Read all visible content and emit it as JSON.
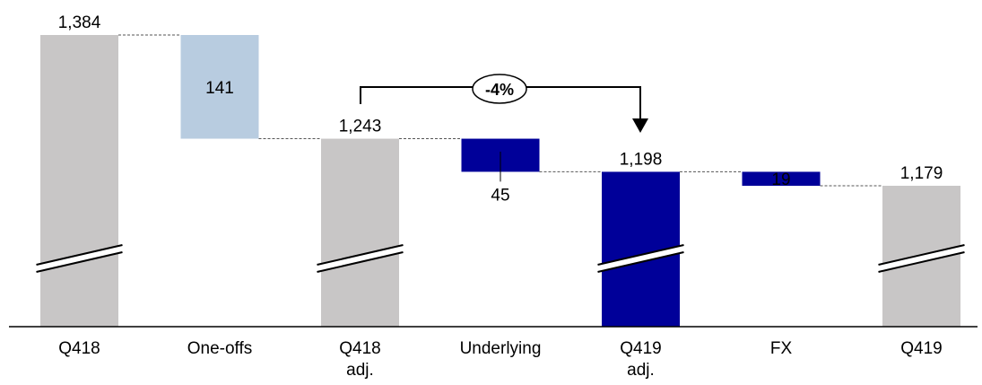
{
  "chart_data": {
    "type": "waterfall",
    "categories": [
      [
        "Q418"
      ],
      [
        "One-offs"
      ],
      [
        "Q418",
        "adj."
      ],
      [
        "Underlying"
      ],
      [
        "Q419",
        "adj."
      ],
      [
        "FX"
      ],
      [
        "Q419"
      ]
    ],
    "values": [
      1384,
      -141,
      1243,
      -45,
      1198,
      -19,
      1179
    ],
    "kinds": [
      "total",
      "delta",
      "total",
      "delta",
      "total",
      "delta",
      "total"
    ],
    "value_labels": [
      "1,384",
      "141",
      "1,243",
      "45",
      "1,198",
      "19",
      "1,179"
    ],
    "axis_break": true,
    "annotation": {
      "from_category": "Q418 adj.",
      "to_category": "Q419 adj.",
      "label": "-4%"
    },
    "colors": {
      "total": "#c8c6c6",
      "total_highlight": "#000099",
      "delta_oneoff": "#b8cce0",
      "delta": "#000099"
    }
  }
}
